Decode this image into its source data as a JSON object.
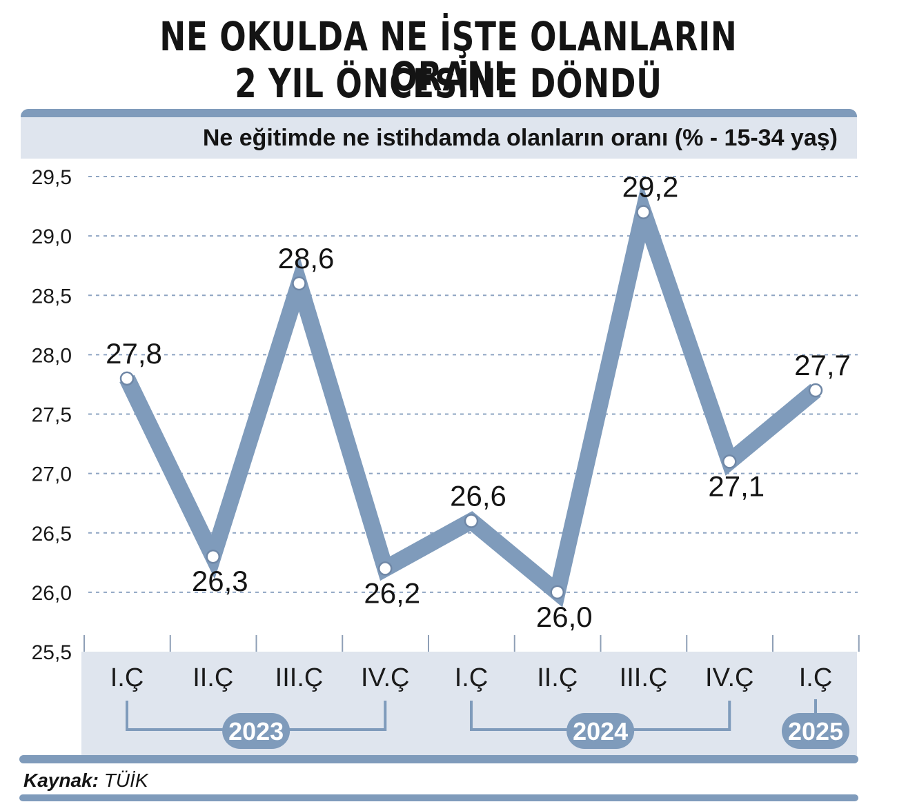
{
  "title_line1": "NE OKULDA NE İŞTE OLANLARIN ORANI",
  "title_line2": "2 YIL ÖNCESİNE DÖNDÜ",
  "source_label": "Kaynak:",
  "source_value": "TÜİK",
  "colors": {
    "line": "#7f9bbb",
    "band": "#dfe5ee",
    "bar": "#7f9bbb",
    "grid": "#8ea4c2",
    "year_pill": "#7f9bbb"
  },
  "chart_data": {
    "type": "line",
    "subtitle": "Ne eğitimde ne istihdamda olanların oranı (% - 15-34 yaş)",
    "categories": [
      "I.Ç",
      "II.Ç",
      "III.Ç",
      "IV.Ç",
      "I.Ç",
      "II.Ç",
      "III.Ç",
      "IV.Ç",
      "I.Ç"
    ],
    "values": [
      27.8,
      26.3,
      28.6,
      26.2,
      26.6,
      26.0,
      29.2,
      27.1,
      27.7
    ],
    "value_labels": [
      "27,8",
      "26,3",
      "28,6",
      "26,2",
      "26,6",
      "26,0",
      "29,2",
      "27,1",
      "27,7"
    ],
    "label_positions": [
      "above",
      "below",
      "above",
      "below",
      "above",
      "below",
      "above",
      "below",
      "above"
    ],
    "year_groups": [
      {
        "label": "2023",
        "from": 0,
        "to": 3
      },
      {
        "label": "2024",
        "from": 4,
        "to": 7
      },
      {
        "label": "2025",
        "from": 8,
        "to": 8
      }
    ],
    "y_ticks": [
      "25,5",
      "26,0",
      "26,5",
      "27,0",
      "27,5",
      "28,0",
      "28,5",
      "29,0",
      "29,5"
    ],
    "y_tick_values": [
      25.5,
      26.0,
      26.5,
      27.0,
      27.5,
      28.0,
      28.5,
      29.0,
      29.5
    ],
    "ylim": [
      25.5,
      29.5
    ],
    "grid": true,
    "legend": "none"
  }
}
